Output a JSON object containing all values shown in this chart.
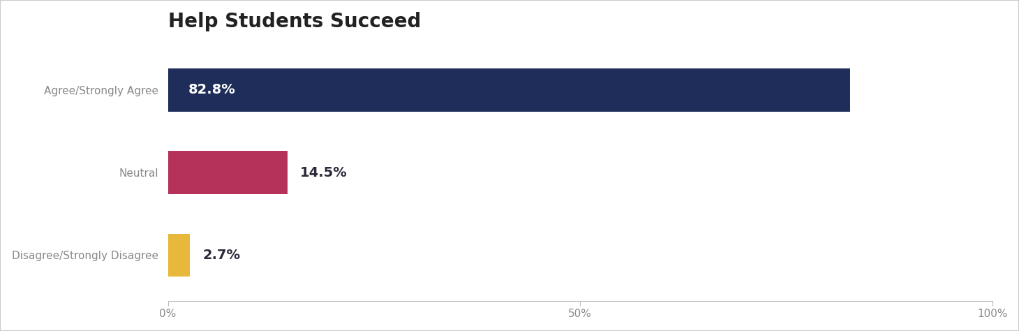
{
  "title": "Help Students Succeed",
  "categories": [
    "Agree/Strongly Agree",
    "Neutral",
    "Disagree/Strongly Disagree"
  ],
  "values": [
    82.8,
    14.5,
    2.7
  ],
  "bar_colors": [
    "#1e2d5a",
    "#b5325a",
    "#e8b83a"
  ],
  "label_texts": [
    "82.8%",
    "14.5%",
    "2.7%"
  ],
  "label_inside": [
    true,
    false,
    false
  ],
  "xlim": [
    0,
    100
  ],
  "xtick_positions": [
    0,
    50,
    100
  ],
  "xtick_labels": [
    "0%",
    "50%",
    "100%"
  ],
  "title_fontsize": 20,
  "tick_label_fontsize": 11,
  "category_fontsize": 11,
  "bar_label_fontsize": 14,
  "background_color": "#ffffff",
  "bar_height": 0.52,
  "label_inside_color": "#ffffff",
  "label_outside_color": "#2a2a3a",
  "border_color": "#cccccc",
  "category_color": "#888888",
  "xtick_color": "#888888",
  "title_color": "#222222"
}
